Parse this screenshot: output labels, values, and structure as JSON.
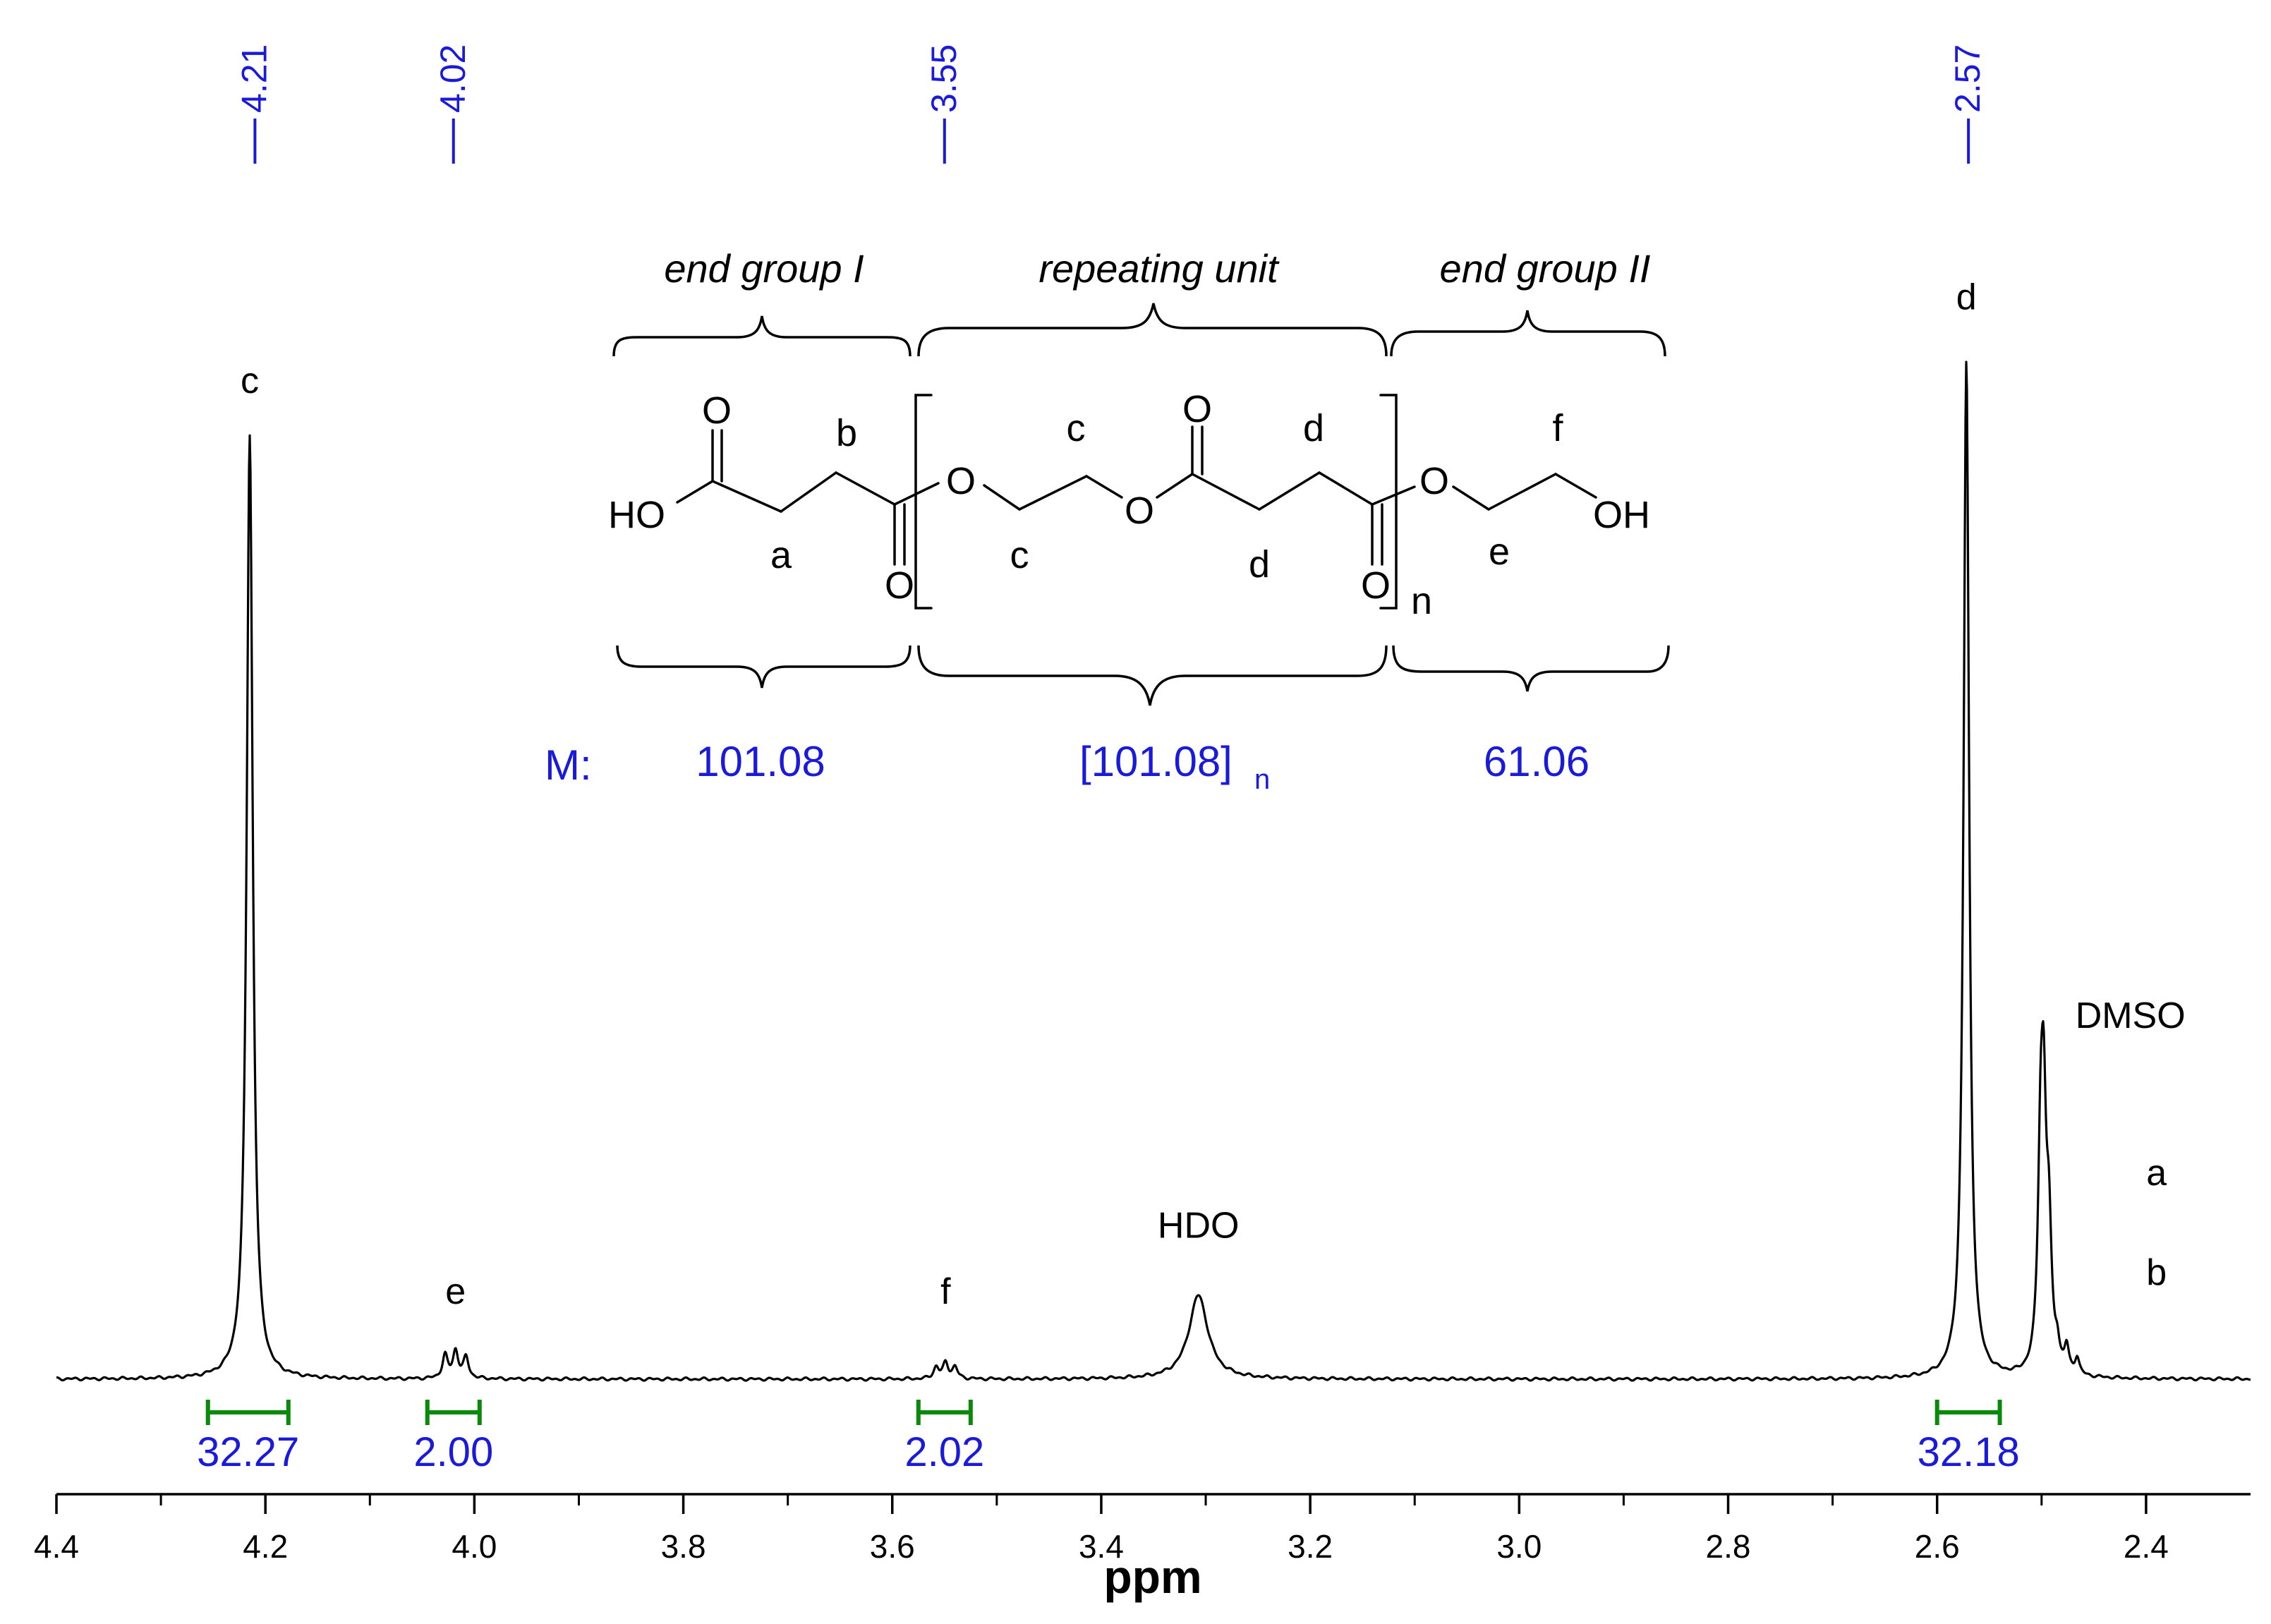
{
  "chart_data": {
    "type": "line",
    "xlabel": "ppm",
    "xlim": [
      4.4,
      2.3
    ],
    "x_reversed": true,
    "ticks": [
      "4.4",
      "4.2",
      "4.0",
      "3.8",
      "3.6",
      "3.4",
      "3.2",
      "3.0",
      "2.8",
      "2.6",
      "2.4"
    ],
    "tick_values": [
      4.4,
      4.2,
      4.0,
      3.8,
      3.6,
      3.4,
      3.2,
      3.0,
      2.8,
      2.6,
      2.4
    ],
    "ylim": [
      0,
      1.0
    ],
    "grid": false,
    "peaks": [
      {
        "ppm": 4.215,
        "height": 0.9,
        "width": 0.0035,
        "label": "c"
      },
      {
        "ppm": 4.028,
        "height": 0.022,
        "width": 0.003,
        "label": ""
      },
      {
        "ppm": 4.018,
        "height": 0.026,
        "width": 0.003,
        "label": "e"
      },
      {
        "ppm": 4.008,
        "height": 0.02,
        "width": 0.003,
        "label": ""
      },
      {
        "ppm": 3.558,
        "height": 0.011,
        "width": 0.003,
        "label": ""
      },
      {
        "ppm": 3.549,
        "height": 0.015,
        "width": 0.003,
        "label": "f"
      },
      {
        "ppm": 3.54,
        "height": 0.011,
        "width": 0.003,
        "label": ""
      },
      {
        "ppm": 3.307,
        "height": 0.08,
        "width": 0.011,
        "label": "HDO"
      },
      {
        "ppm": 2.572,
        "height": 0.97,
        "width": 0.0032,
        "label": "d"
      },
      {
        "ppm": 2.501,
        "height": 0.18,
        "width": 0.003,
        "label": ""
      },
      {
        "ppm": 2.498,
        "height": 0.21,
        "width": 0.003,
        "label": "DMSO"
      },
      {
        "ppm": 2.493,
        "height": 0.12,
        "width": 0.003,
        "label": ""
      },
      {
        "ppm": 2.485,
        "height": 0.02,
        "width": 0.0025,
        "label": ""
      },
      {
        "ppm": 2.476,
        "height": 0.024,
        "width": 0.0025,
        "label": ""
      },
      {
        "ppm": 2.466,
        "height": 0.016,
        "width": 0.0025,
        "label": ""
      }
    ],
    "peak_labels": [
      {
        "ppm": 4.215,
        "text": "c",
        "level": 0.94
      },
      {
        "ppm": 4.018,
        "text": "e",
        "level": 0.072
      },
      {
        "ppm": 3.549,
        "text": "f",
        "level": 0.072
      },
      {
        "ppm": 3.307,
        "text": "HDO",
        "level": 0.135
      },
      {
        "ppm": 2.572,
        "text": "d",
        "level": 1.02
      },
      {
        "ppm": 2.415,
        "text": "DMSO",
        "level": 0.335
      },
      {
        "ppm": 2.39,
        "text": "a",
        "level": 0.185
      },
      {
        "ppm": 2.39,
        "text": "b",
        "level": 0.09
      }
    ],
    "shift_markers": [
      "4.21",
      "4.02",
      "3.55",
      "2.57"
    ],
    "shift_marker_values": [
      4.21,
      4.02,
      3.55,
      2.57
    ],
    "integrals": [
      {
        "from": 4.255,
        "to": 4.178,
        "value": "32.27"
      },
      {
        "from": 4.045,
        "to": 3.995,
        "value": "2.00"
      },
      {
        "from": 3.575,
        "to": 3.525,
        "value": "2.02"
      },
      {
        "from": 2.6,
        "to": 2.54,
        "value": "32.18"
      }
    ]
  },
  "structure": {
    "sections": [
      "end  group I",
      "repeating unit",
      "end  group II"
    ],
    "atoms": {
      "ho": "HO",
      "oh": "OH",
      "o": "O",
      "n": "n"
    },
    "proton_labels": {
      "a": "a",
      "b": "b",
      "c": "c",
      "d": "d",
      "e": "e",
      "f": "f"
    },
    "mass_prefix": "M:",
    "masses": {
      "end1": "101.08",
      "repeat": "[101.08]",
      "repeat_sub": "n",
      "end2": "61.06"
    }
  }
}
